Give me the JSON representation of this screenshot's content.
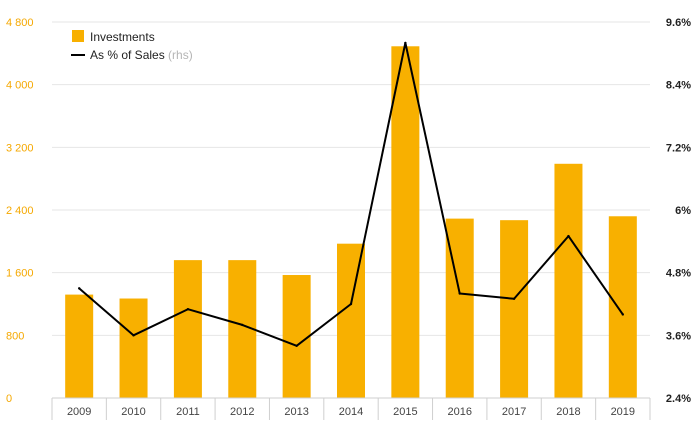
{
  "chart_data": {
    "type": "bar+line",
    "categories": [
      "2009",
      "2010",
      "2011",
      "2012",
      "2013",
      "2014",
      "2015",
      "2016",
      "2017",
      "2018",
      "2019"
    ],
    "series": [
      {
        "name": "Investments",
        "axis": "left",
        "type": "bar",
        "values": [
          1320,
          1270,
          1760,
          1760,
          1570,
          1970,
          4490,
          2290,
          2270,
          2990,
          2320
        ]
      },
      {
        "name": "As % of Sales",
        "axis_label_suffix": "(rhs)",
        "axis": "right",
        "type": "line",
        "values": [
          4.5,
          3.6,
          4.1,
          3.8,
          3.4,
          4.2,
          9.2,
          4.4,
          4.3,
          5.5,
          4.0
        ]
      }
    ],
    "left_axis": {
      "ylim": [
        0,
        4800
      ],
      "ticks": [
        0,
        800,
        1600,
        2400,
        3200,
        4000,
        4800
      ],
      "tick_labels": [
        "0",
        "800",
        "1 600",
        "2 400",
        "3 200",
        "4 000",
        "4 800"
      ]
    },
    "right_axis": {
      "ylim": [
        2.4,
        9.6
      ],
      "ticks": [
        2.4,
        3.6,
        4.8,
        6.0,
        7.2,
        8.4,
        9.6
      ],
      "tick_labels": [
        "2.4%",
        "3.6%",
        "4.8%",
        "6%",
        "7.2%",
        "8.4%",
        "9.6%"
      ]
    },
    "legend": {
      "placement": "top-left",
      "items": [
        {
          "label": "Investments",
          "suffix": ""
        },
        {
          "label": "As % of Sales",
          "suffix": "(rhs)"
        }
      ]
    },
    "colors": {
      "bar": "#f8b000",
      "line": "#000000",
      "left_tick": "#f5a800",
      "right_tick": "#222222",
      "grid": "#e6e6e6",
      "axis": "#cfcfcf"
    },
    "title": "",
    "xlabel": "",
    "ylabel": ""
  }
}
